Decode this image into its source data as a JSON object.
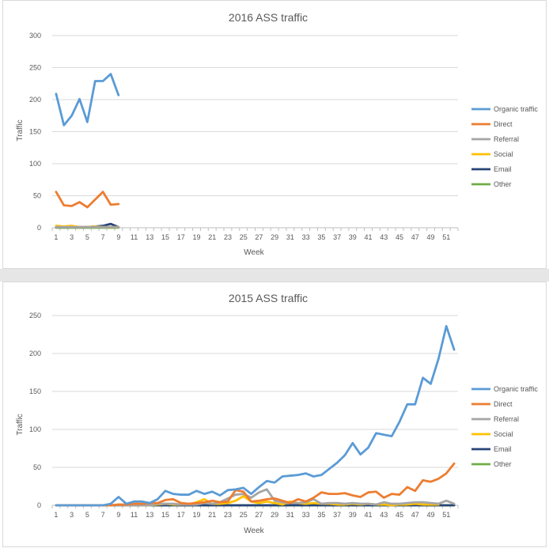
{
  "chart_data": [
    {
      "type": "line",
      "title": "2016 ASS traffic",
      "xlabel": "Week",
      "ylabel": "Traffic",
      "ylim": [
        0,
        300
      ],
      "yticks": [
        0,
        50,
        100,
        150,
        200,
        250,
        300
      ],
      "xticks": [
        1,
        3,
        5,
        7,
        9,
        11,
        13,
        15,
        17,
        19,
        21,
        23,
        25,
        27,
        29,
        31,
        33,
        35,
        37,
        39,
        41,
        43,
        45,
        47,
        49,
        51
      ],
      "xmax": 52,
      "grid": true,
      "legend_position": "right",
      "series": [
        {
          "name": "Organic traffic",
          "color": "#5b9bd5",
          "x": [
            1,
            2,
            3,
            4,
            5,
            6,
            7,
            8,
            9
          ],
          "values": [
            209,
            160,
            175,
            201,
            165,
            229,
            229,
            240,
            207
          ]
        },
        {
          "name": "Direct",
          "color": "#ed7d31",
          "x": [
            1,
            2,
            3,
            4,
            5,
            6,
            7,
            8,
            9
          ],
          "values": [
            56,
            35,
            34,
            40,
            32,
            44,
            56,
            36,
            37
          ]
        },
        {
          "name": "Referral",
          "color": "#a5a5a5",
          "x": [
            1,
            2,
            3,
            4,
            5,
            6,
            7,
            8,
            9
          ],
          "values": [
            1,
            1,
            1,
            1,
            1,
            1,
            1,
            1,
            1
          ]
        },
        {
          "name": "Social",
          "color": "#ffc000",
          "x": [
            1,
            2,
            3,
            4,
            5,
            6,
            7,
            8,
            9
          ],
          "values": [
            3,
            2,
            3,
            1,
            1,
            2,
            1,
            1,
            1
          ]
        },
        {
          "name": "Email",
          "color": "#264478",
          "x": [
            1,
            2,
            3,
            4,
            5,
            6,
            7,
            8,
            9
          ],
          "values": [
            1,
            1,
            1,
            1,
            1,
            2,
            3,
            6,
            1
          ]
        },
        {
          "name": "Other",
          "color": "#70ad47",
          "x": [
            1,
            2,
            3,
            4,
            5,
            6,
            7,
            8,
            9
          ],
          "values": [
            0,
            0,
            0,
            0,
            0,
            0,
            0,
            0,
            0
          ]
        }
      ]
    },
    {
      "type": "line",
      "title": "2015 ASS traffic",
      "xlabel": "Week",
      "ylabel": "Traffic",
      "ylim": [
        0,
        250
      ],
      "yticks": [
        0,
        50,
        100,
        150,
        200,
        250
      ],
      "xticks": [
        1,
        3,
        5,
        7,
        9,
        11,
        13,
        15,
        17,
        19,
        21,
        23,
        25,
        27,
        29,
        31,
        33,
        35,
        37,
        39,
        41,
        43,
        45,
        47,
        49,
        51
      ],
      "xmax": 52,
      "grid": true,
      "legend_position": "right",
      "series": [
        {
          "name": "Organic traffic",
          "color": "#5b9bd5",
          "x": [
            1,
            2,
            3,
            4,
            5,
            6,
            7,
            8,
            9,
            10,
            11,
            12,
            13,
            14,
            15,
            16,
            17,
            18,
            19,
            20,
            21,
            22,
            23,
            24,
            25,
            26,
            27,
            28,
            29,
            30,
            31,
            32,
            33,
            34,
            35,
            36,
            37,
            38,
            39,
            40,
            41,
            42,
            43,
            44,
            45,
            46,
            47,
            48,
            49,
            50,
            51,
            52
          ],
          "values": [
            0,
            0,
            0,
            0,
            0,
            0,
            0,
            2,
            11,
            2,
            5,
            5,
            3,
            8,
            19,
            15,
            14,
            14,
            19,
            15,
            18,
            13,
            20,
            21,
            23,
            15,
            24,
            32,
            30,
            38,
            39,
            40,
            42,
            38,
            40,
            48,
            56,
            66,
            82,
            67,
            76,
            95,
            93,
            91,
            110,
            133,
            133,
            168,
            160,
            193,
            236,
            205
          ]
        },
        {
          "name": "Direct",
          "color": "#ed7d31",
          "x": [
            1,
            2,
            3,
            4,
            5,
            6,
            7,
            8,
            9,
            10,
            11,
            12,
            13,
            14,
            15,
            16,
            17,
            18,
            19,
            20,
            21,
            22,
            23,
            24,
            25,
            26,
            27,
            28,
            29,
            30,
            31,
            32,
            33,
            34,
            35,
            36,
            37,
            38,
            39,
            40,
            41,
            42,
            43,
            44,
            45,
            46,
            47,
            48,
            49,
            50,
            51,
            52
          ],
          "values": [
            0,
            0,
            0,
            0,
            0,
            0,
            0,
            0,
            1,
            1,
            2,
            2,
            3,
            3,
            7,
            8,
            3,
            2,
            3,
            4,
            6,
            4,
            5,
            20,
            18,
            5,
            6,
            8,
            9,
            6,
            3,
            8,
            5,
            10,
            17,
            15,
            15,
            16,
            13,
            11,
            17,
            18,
            10,
            15,
            14,
            24,
            19,
            33,
            31,
            35,
            42,
            55
          ]
        },
        {
          "name": "Referral",
          "color": "#a5a5a5",
          "x": [
            1,
            2,
            3,
            4,
            5,
            6,
            7,
            8,
            9,
            10,
            11,
            12,
            13,
            14,
            15,
            16,
            17,
            18,
            19,
            20,
            21,
            22,
            23,
            24,
            25,
            26,
            27,
            28,
            29,
            30,
            31,
            32,
            33,
            34,
            35,
            36,
            37,
            38,
            39,
            40,
            41,
            42,
            43,
            44,
            45,
            46,
            47,
            48,
            49,
            50,
            51,
            52
          ],
          "values": [
            0,
            0,
            0,
            0,
            0,
            0,
            0,
            0,
            0,
            0,
            0,
            0,
            0,
            2,
            2,
            2,
            1,
            1,
            1,
            3,
            2,
            4,
            9,
            14,
            15,
            10,
            17,
            21,
            6,
            4,
            3,
            3,
            4,
            8,
            2,
            3,
            3,
            2,
            3,
            2,
            2,
            1,
            4,
            2,
            2,
            3,
            4,
            4,
            3,
            2,
            6,
            2
          ]
        },
        {
          "name": "Social",
          "color": "#ffc000",
          "x": [
            1,
            2,
            3,
            4,
            5,
            6,
            7,
            8,
            9,
            10,
            11,
            12,
            13,
            14,
            15,
            16,
            17,
            18,
            19,
            20,
            21,
            22,
            23,
            24,
            25,
            26,
            27,
            28,
            29,
            30,
            31,
            32,
            33,
            34,
            35,
            36,
            37,
            38,
            39,
            40,
            41,
            42,
            43,
            44,
            45,
            46,
            47,
            48,
            49,
            50
          ],
          "values": [
            0,
            0,
            0,
            0,
            0,
            0,
            0,
            0,
            1,
            0,
            1,
            0,
            0,
            1,
            2,
            1,
            1,
            1,
            4,
            8,
            2,
            2,
            3,
            6,
            12,
            5,
            3,
            5,
            3,
            1,
            5,
            3,
            2,
            3,
            2,
            2,
            1,
            1,
            2,
            1,
            2,
            1,
            1,
            0,
            1,
            1,
            2,
            1,
            1,
            1
          ]
        },
        {
          "name": "Email",
          "color": "#264478",
          "x": [
            1,
            2,
            3,
            4,
            5,
            6,
            7,
            8,
            9,
            10,
            11,
            12,
            13,
            14,
            15,
            16,
            17,
            18,
            19,
            20,
            21,
            22,
            23,
            24,
            25,
            26,
            27,
            28,
            29,
            30,
            31,
            32,
            33,
            34,
            35,
            36,
            37,
            38,
            39,
            40,
            41,
            42,
            43,
            44,
            45,
            46,
            47,
            48,
            49,
            50,
            51,
            52
          ],
          "values": [
            0,
            0,
            0,
            0,
            0,
            0,
            0,
            0,
            0,
            0,
            0,
            0,
            0,
            0,
            0,
            0,
            0,
            0,
            0,
            0,
            0,
            0,
            0,
            0,
            0,
            0,
            0,
            0,
            0,
            0,
            0,
            0,
            0,
            0,
            0,
            0,
            0,
            0,
            0,
            0,
            0,
            0,
            0,
            0,
            0,
            0,
            0,
            0,
            0,
            0,
            0,
            0
          ]
        },
        {
          "name": "Other",
          "color": "#70ad47",
          "x": [
            1,
            2,
            3,
            4,
            5,
            6,
            7,
            8,
            9,
            10,
            11,
            12,
            13,
            14,
            15,
            16,
            17,
            18,
            19,
            20,
            21,
            22,
            23,
            24,
            25,
            26,
            27,
            28,
            29,
            30,
            31,
            32,
            33,
            34,
            35,
            36,
            37,
            38,
            39,
            40,
            41,
            42,
            43,
            44,
            45,
            46,
            47,
            48,
            49,
            50,
            51,
            52
          ],
          "values": [
            0,
            0,
            0,
            0,
            0,
            0,
            0,
            0,
            0,
            0,
            0,
            0,
            0,
            0,
            0,
            0,
            0,
            0,
            0,
            0,
            0,
            0,
            0,
            0,
            0,
            0,
            0,
            0,
            0,
            0,
            0,
            0,
            0,
            0,
            0,
            0,
            0,
            0,
            0,
            0,
            0,
            0,
            0,
            0,
            0,
            0,
            0,
            0,
            0,
            0,
            0,
            0
          ]
        }
      ]
    }
  ]
}
